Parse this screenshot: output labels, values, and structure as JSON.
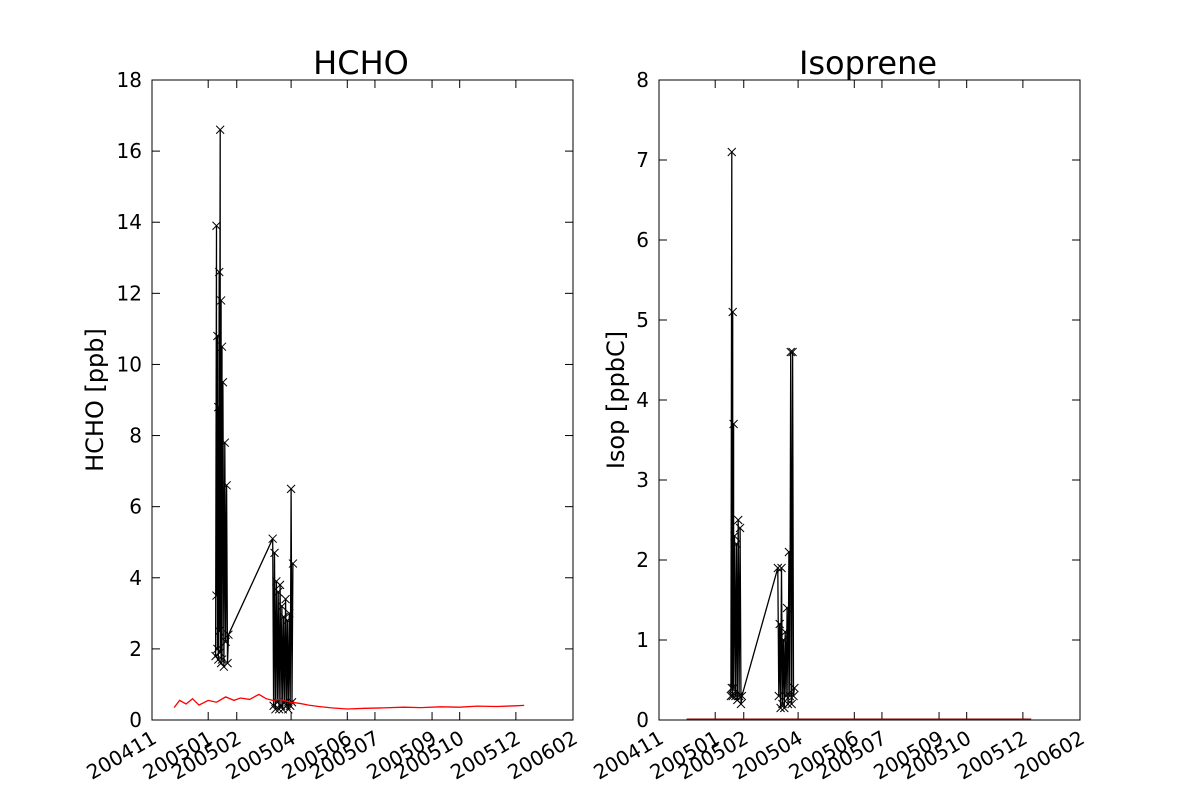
{
  "figure": {
    "background": "#ffffff"
  },
  "chart_data": [
    {
      "type": "line",
      "title": "HCHO",
      "xlabel": "",
      "ylabel": "HCHO [ppb]",
      "xlim": [
        "2004-11-01",
        "2006-02-01"
      ],
      "ylim": [
        0,
        18
      ],
      "x_ticks": [
        "200411",
        "200501",
        "200502",
        "200504",
        "200506",
        "200507",
        "200509",
        "200510",
        "200512",
        "200602"
      ],
      "y_ticks": [
        "0",
        "2",
        "4",
        "6",
        "8",
        "10",
        "12",
        "14",
        "16",
        "18"
      ],
      "grid": false,
      "legend": "none",
      "series": [
        {
          "color": "#000000",
          "marker": "x",
          "x": [
            "2005-01-09",
            "2005-01-10",
            "2005-01-10",
            "2005-01-11",
            "2005-01-11",
            "2005-01-12",
            "2005-01-12",
            "2005-01-13",
            "2005-01-13",
            "2005-01-14",
            "2005-01-14",
            "2005-01-15",
            "2005-01-15",
            "2005-01-16",
            "2005-01-16",
            "2005-01-17",
            "2005-01-18",
            "2005-01-19",
            "2005-01-20",
            "2005-01-21",
            "2005-01-22",
            "2005-01-23",
            "2005-03-12",
            "2005-03-13",
            "2005-03-14",
            "2005-03-15",
            "2005-03-16",
            "2005-03-17",
            "2005-03-18",
            "2005-03-19",
            "2005-03-20",
            "2005-03-21",
            "2005-03-22",
            "2005-03-23",
            "2005-03-24",
            "2005-03-25",
            "2005-03-26",
            "2005-03-27",
            "2005-03-28",
            "2005-03-29",
            "2005-03-30",
            "2005-03-31",
            "2005-04-01",
            "2005-04-02",
            "2005-04-03"
          ],
          "y": [
            1.8,
            13.9,
            3.5,
            10.8,
            2.0,
            8.8,
            1.7,
            12.6,
            2.5,
            16.6,
            1.9,
            11.8,
            1.6,
            10.5,
            1.7,
            9.5,
            1.5,
            7.8,
            2.2,
            6.6,
            1.6,
            2.4,
            5.1,
            0.4,
            4.7,
            0.3,
            3.9,
            0.5,
            3.6,
            0.3,
            3.8,
            0.4,
            3.2,
            0.3,
            2.9,
            0.5,
            3.4,
            0.4,
            2.8,
            0.3,
            3.0,
            0.4,
            6.5,
            0.5,
            4.4
          ]
        },
        {
          "color": "#ff0000",
          "marker": "none",
          "x": [
            "2004-11-25",
            "2004-12-01",
            "2004-12-08",
            "2004-12-15",
            "2004-12-22",
            "2005-01-01",
            "2005-01-10",
            "2005-01-20",
            "2005-01-29",
            "2005-02-05",
            "2005-02-15",
            "2005-02-25",
            "2005-03-05",
            "2005-03-12",
            "2005-03-20",
            "2005-03-31",
            "2005-04-10",
            "2005-04-20",
            "2005-05-01",
            "2005-05-15",
            "2005-06-01",
            "2005-06-20",
            "2005-07-10",
            "2005-08-01",
            "2005-08-20",
            "2005-09-10",
            "2005-10-01",
            "2005-10-20",
            "2005-11-10",
            "2005-12-01",
            "2005-12-10"
          ],
          "y": [
            0.35,
            0.55,
            0.45,
            0.6,
            0.42,
            0.55,
            0.5,
            0.65,
            0.55,
            0.62,
            0.58,
            0.72,
            0.6,
            0.55,
            0.58,
            0.5,
            0.47,
            0.42,
            0.38,
            0.34,
            0.31,
            0.33,
            0.34,
            0.36,
            0.35,
            0.37,
            0.36,
            0.39,
            0.38,
            0.4,
            0.41
          ]
        }
      ]
    },
    {
      "type": "line",
      "title": "Isoprene",
      "xlabel": "",
      "ylabel": "Isop [ppbC]",
      "xlim": [
        "2004-11-01",
        "2006-02-01"
      ],
      "ylim": [
        0,
        8
      ],
      "x_ticks": [
        "200411",
        "200501",
        "200502",
        "200504",
        "200506",
        "200507",
        "200509",
        "200510",
        "200512",
        "200602"
      ],
      "y_ticks": [
        "0",
        "1",
        "2",
        "3",
        "4",
        "5",
        "6",
        "7",
        "8"
      ],
      "grid": false,
      "legend": "none",
      "series": [
        {
          "color": "#000000",
          "marker": "x",
          "x": [
            "2005-01-18",
            "2005-01-19",
            "2005-01-19",
            "2005-01-20",
            "2005-01-20",
            "2005-01-21",
            "2005-01-21",
            "2005-01-22",
            "2005-01-23",
            "2005-01-24",
            "2005-01-25",
            "2005-01-26",
            "2005-01-27",
            "2005-01-28",
            "2005-01-29",
            "2005-01-30",
            "2005-03-10",
            "2005-03-11",
            "2005-03-12",
            "2005-03-13",
            "2005-03-14",
            "2005-03-15",
            "2005-03-16",
            "2005-03-17",
            "2005-03-18",
            "2005-03-19",
            "2005-03-20",
            "2005-03-21",
            "2005-03-22",
            "2005-03-23",
            "2005-03-24",
            "2005-03-25",
            "2005-03-26",
            "2005-03-27",
            "2005-03-28"
          ],
          "y": [
            0.3,
            7.1,
            0.4,
            5.1,
            0.3,
            3.7,
            0.4,
            2.3,
            0.3,
            2.2,
            0.25,
            2.5,
            0.3,
            2.4,
            0.2,
            0.3,
            1.9,
            0.3,
            1.2,
            0.15,
            1.9,
            0.2,
            1.0,
            0.15,
            1.1,
            0.3,
            1.4,
            0.2,
            2.1,
            0.3,
            4.6,
            0.2,
            4.6,
            0.3,
            0.4
          ]
        },
        {
          "color": "#8b0000",
          "marker": "none",
          "x": [
            "2004-12-01",
            "2005-12-10"
          ],
          "y": [
            0.01,
            0.01
          ]
        }
      ]
    }
  ]
}
